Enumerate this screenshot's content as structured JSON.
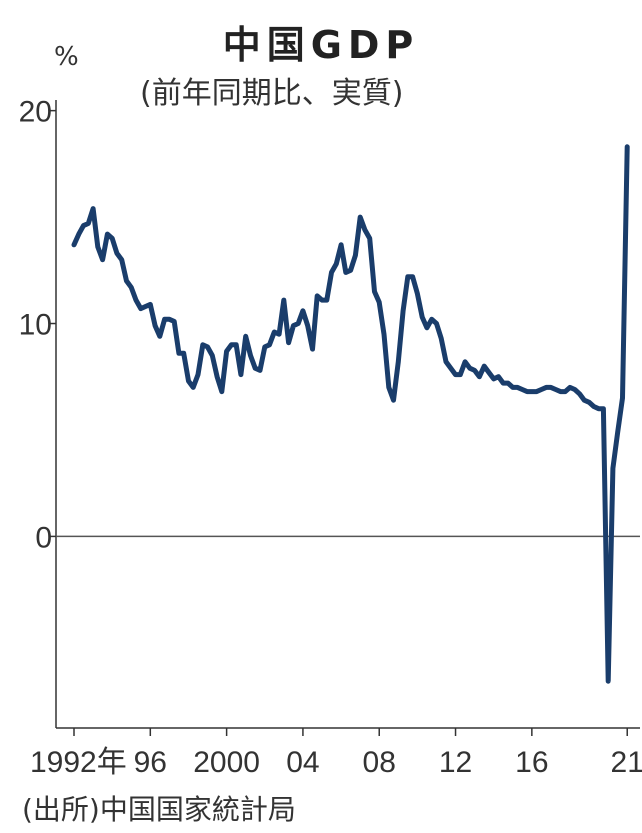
{
  "chart_data": {
    "type": "line",
    "title": "中国GDP",
    "subtitle": "(前年同期比、実質)",
    "ylabel": "%",
    "source": "(出所)中国国家統計局",
    "ylim": [
      -9,
      20.5
    ],
    "y_ticks": [
      {
        "value": 0,
        "label": "0"
      },
      {
        "value": 10,
        "label": "10"
      },
      {
        "value": 20,
        "label": "20"
      }
    ],
    "xlim": [
      1992,
      2021.25
    ],
    "x_ticks": [
      {
        "value": 1992,
        "label": "1992年"
      },
      {
        "value": 1996,
        "label": "96"
      },
      {
        "value": 2000,
        "label": "2000"
      },
      {
        "value": 2004,
        "label": "04"
      },
      {
        "value": 2008,
        "label": "08"
      },
      {
        "value": 2012,
        "label": "12"
      },
      {
        "value": 2016,
        "label": "16"
      },
      {
        "value": 2021,
        "label": "21"
      }
    ],
    "zero_line": true,
    "color": "#1a3d6b",
    "series": [
      {
        "name": "",
        "x": [
          1992.0,
          1992.25,
          1992.5,
          1992.75,
          1993.0,
          1993.25,
          1993.5,
          1993.75,
          1994.0,
          1994.25,
          1994.5,
          1994.75,
          1995.0,
          1995.25,
          1995.5,
          1995.75,
          1996.0,
          1996.25,
          1996.5,
          1996.75,
          1997.0,
          1997.25,
          1997.5,
          1997.75,
          1998.0,
          1998.25,
          1998.5,
          1998.75,
          1999.0,
          1999.25,
          1999.5,
          1999.75,
          2000.0,
          2000.25,
          2000.5,
          2000.75,
          2001.0,
          2001.25,
          2001.5,
          2001.75,
          2002.0,
          2002.25,
          2002.5,
          2002.75,
          2003.0,
          2003.25,
          2003.5,
          2003.75,
          2004.0,
          2004.25,
          2004.5,
          2004.75,
          2005.0,
          2005.25,
          2005.5,
          2005.75,
          2006.0,
          2006.25,
          2006.5,
          2006.75,
          2007.0,
          2007.25,
          2007.5,
          2007.75,
          2008.0,
          2008.25,
          2008.5,
          2008.75,
          2009.0,
          2009.25,
          2009.5,
          2009.75,
          2010.0,
          2010.25,
          2010.5,
          2010.75,
          2011.0,
          2011.25,
          2011.5,
          2011.75,
          2012.0,
          2012.25,
          2012.5,
          2012.75,
          2013.0,
          2013.25,
          2013.5,
          2013.75,
          2014.0,
          2014.25,
          2014.5,
          2014.75,
          2015.0,
          2015.25,
          2015.5,
          2015.75,
          2016.0,
          2016.25,
          2016.5,
          2016.75,
          2017.0,
          2017.25,
          2017.5,
          2017.75,
          2018.0,
          2018.25,
          2018.5,
          2018.75,
          2019.0,
          2019.25,
          2019.5,
          2019.75,
          2020.0,
          2020.25,
          2020.5,
          2020.75,
          2021.0
        ],
        "values": [
          13.7,
          14.2,
          14.6,
          14.7,
          15.4,
          13.6,
          13.0,
          14.2,
          14.0,
          13.3,
          13.0,
          12.0,
          11.7,
          11.1,
          10.7,
          10.8,
          10.9,
          9.9,
          9.4,
          10.2,
          10.2,
          10.1,
          8.6,
          8.6,
          7.3,
          7.0,
          7.6,
          9.0,
          8.9,
          8.5,
          7.5,
          6.8,
          8.7,
          9.0,
          9.0,
          7.6,
          9.4,
          8.5,
          7.9,
          7.8,
          8.9,
          9.0,
          9.6,
          9.5,
          11.1,
          9.1,
          9.9,
          10.0,
          10.6,
          9.9,
          8.8,
          11.3,
          11.1,
          11.1,
          12.4,
          12.8,
          13.7,
          12.4,
          12.5,
          13.2,
          15.0,
          14.4,
          14.0,
          11.5,
          11.0,
          9.5,
          7.0,
          6.4,
          8.2,
          10.6,
          12.2,
          12.2,
          11.4,
          10.3,
          9.8,
          10.2,
          10.0,
          9.3,
          8.2,
          7.9,
          7.6,
          7.6,
          8.2,
          7.9,
          7.8,
          7.5,
          8.0,
          7.7,
          7.4,
          7.5,
          7.2,
          7.2,
          7.0,
          7.0,
          6.9,
          6.8,
          6.8,
          6.8,
          6.9,
          7.0,
          7.0,
          6.9,
          6.8,
          6.8,
          7.0,
          6.9,
          6.7,
          6.4,
          6.3,
          6.1,
          6.0,
          6.0,
          -6.8,
          3.2,
          4.9,
          6.5,
          18.3
        ]
      }
    ]
  }
}
